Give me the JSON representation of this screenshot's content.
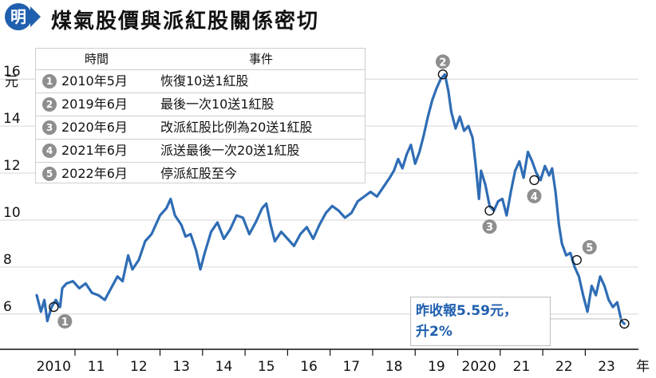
{
  "header": {
    "badge": "明",
    "title": "煤氣股價與派紅股關係密切"
  },
  "legend": {
    "col_time": "時間",
    "col_event": "事件",
    "rows": [
      {
        "num": "1",
        "time": "2010年5月",
        "event": "恢復10送1紅股"
      },
      {
        "num": "2",
        "time": "2019年6月",
        "event": "最後一次10送1紅股"
      },
      {
        "num": "3",
        "time": "2020年6月",
        "event": "改派紅股比例為20送1紅股"
      },
      {
        "num": "4",
        "time": "2021年6月",
        "event": "派送最後一次20送1紅股"
      },
      {
        "num": "5",
        "time": "2022年6月",
        "event": "停派紅股至今"
      }
    ]
  },
  "callout": {
    "line1": "昨收報5.59元，",
    "line2": "升2%"
  },
  "colors": {
    "line": "#2f6db5",
    "accent": "#1f5fae",
    "marker_badge": "#8e8e8e",
    "axis": "#111111"
  },
  "chart_data": {
    "type": "line",
    "title": "煤氣股價與派紅股關係密切",
    "ylabel": "元",
    "xlabel": "年",
    "ylim": [
      4.5,
      17.5
    ],
    "xlim": [
      2009.45,
      2023.75
    ],
    "y_ticks": [
      6,
      8,
      10,
      12,
      14,
      16
    ],
    "x_ticks": [
      {
        "value": 2010,
        "label": "2010"
      },
      {
        "value": 2011,
        "label": "11"
      },
      {
        "value": 2012,
        "label": "12"
      },
      {
        "value": 2013,
        "label": "13"
      },
      {
        "value": 2014,
        "label": "14"
      },
      {
        "value": 2015,
        "label": "15"
      },
      {
        "value": 2016,
        "label": "16"
      },
      {
        "value": 2017,
        "label": "17"
      },
      {
        "value": 2018,
        "label": "18"
      },
      {
        "value": 2019,
        "label": "19"
      },
      {
        "value": 2020,
        "label": "2020"
      },
      {
        "value": 2021,
        "label": "21"
      },
      {
        "value": 2022,
        "label": "22"
      },
      {
        "value": 2023,
        "label": "23"
      }
    ],
    "series": [
      {
        "name": "煤氣股價",
        "points": [
          [
            2009.6,
            6.8
          ],
          [
            2009.7,
            6.1
          ],
          [
            2009.78,
            6.6
          ],
          [
            2009.85,
            5.7
          ],
          [
            2009.95,
            6.3
          ],
          [
            2010.05,
            6.6
          ],
          [
            2010.15,
            6.3
          ],
          [
            2010.2,
            7.1
          ],
          [
            2010.3,
            7.3
          ],
          [
            2010.45,
            7.4
          ],
          [
            2010.6,
            7.1
          ],
          [
            2010.75,
            7.3
          ],
          [
            2010.9,
            6.9
          ],
          [
            2011.05,
            6.8
          ],
          [
            2011.2,
            6.6
          ],
          [
            2011.35,
            7.1
          ],
          [
            2011.5,
            7.6
          ],
          [
            2011.62,
            7.4
          ],
          [
            2011.75,
            8.5
          ],
          [
            2011.85,
            7.9
          ],
          [
            2012.0,
            8.3
          ],
          [
            2012.15,
            9.1
          ],
          [
            2012.3,
            9.4
          ],
          [
            2012.5,
            10.2
          ],
          [
            2012.65,
            10.5
          ],
          [
            2012.75,
            10.9
          ],
          [
            2012.85,
            10.2
          ],
          [
            2013.0,
            9.8
          ],
          [
            2013.1,
            9.3
          ],
          [
            2013.22,
            9.4
          ],
          [
            2013.35,
            8.7
          ],
          [
            2013.45,
            7.9
          ],
          [
            2013.55,
            8.6
          ],
          [
            2013.7,
            9.5
          ],
          [
            2013.85,
            9.9
          ],
          [
            2014.0,
            9.2
          ],
          [
            2014.15,
            9.6
          ],
          [
            2014.3,
            10.2
          ],
          [
            2014.45,
            10.1
          ],
          [
            2014.6,
            9.4
          ],
          [
            2014.75,
            9.9
          ],
          [
            2014.9,
            10.5
          ],
          [
            2015.0,
            10.7
          ],
          [
            2015.1,
            9.8
          ],
          [
            2015.2,
            9.1
          ],
          [
            2015.35,
            9.5
          ],
          [
            2015.5,
            9.2
          ],
          [
            2015.65,
            8.9
          ],
          [
            2015.8,
            9.4
          ],
          [
            2015.95,
            9.7
          ],
          [
            2016.1,
            9.2
          ],
          [
            2016.25,
            9.8
          ],
          [
            2016.4,
            10.3
          ],
          [
            2016.55,
            10.6
          ],
          [
            2016.7,
            10.4
          ],
          [
            2016.85,
            10.1
          ],
          [
            2017.0,
            10.3
          ],
          [
            2017.15,
            10.8
          ],
          [
            2017.3,
            11.0
          ],
          [
            2017.45,
            11.2
          ],
          [
            2017.6,
            11.0
          ],
          [
            2017.75,
            11.4
          ],
          [
            2017.9,
            11.8
          ],
          [
            2018.0,
            12.1
          ],
          [
            2018.1,
            12.6
          ],
          [
            2018.2,
            12.2
          ],
          [
            2018.3,
            12.8
          ],
          [
            2018.4,
            13.2
          ],
          [
            2018.5,
            12.4
          ],
          [
            2018.6,
            12.9
          ],
          [
            2018.7,
            13.6
          ],
          [
            2018.8,
            14.4
          ],
          [
            2018.9,
            15.1
          ],
          [
            2019.0,
            15.6
          ],
          [
            2019.1,
            16.0
          ],
          [
            2019.2,
            16.2
          ],
          [
            2019.28,
            15.5
          ],
          [
            2019.35,
            14.6
          ],
          [
            2019.45,
            13.9
          ],
          [
            2019.55,
            14.4
          ],
          [
            2019.65,
            13.8
          ],
          [
            2019.75,
            14.0
          ],
          [
            2019.85,
            13.5
          ],
          [
            2019.92,
            12.4
          ],
          [
            2020.0,
            10.9
          ],
          [
            2020.05,
            12.1
          ],
          [
            2020.15,
            11.5
          ],
          [
            2020.25,
            10.6
          ],
          [
            2020.35,
            10.4
          ],
          [
            2020.45,
            10.8
          ],
          [
            2020.55,
            10.9
          ],
          [
            2020.65,
            10.2
          ],
          [
            2020.75,
            11.2
          ],
          [
            2020.85,
            12.1
          ],
          [
            2020.95,
            12.5
          ],
          [
            2021.05,
            11.8
          ],
          [
            2021.15,
            12.9
          ],
          [
            2021.25,
            12.5
          ],
          [
            2021.35,
            12.0
          ],
          [
            2021.45,
            11.7
          ],
          [
            2021.55,
            12.3
          ],
          [
            2021.65,
            11.9
          ],
          [
            2021.72,
            12.2
          ],
          [
            2021.8,
            11.2
          ],
          [
            2021.88,
            9.8
          ],
          [
            2021.95,
            9.0
          ],
          [
            2022.05,
            8.5
          ],
          [
            2022.15,
            8.6
          ],
          [
            2022.25,
            8.0
          ],
          [
            2022.35,
            7.6
          ],
          [
            2022.45,
            6.8
          ],
          [
            2022.55,
            6.1
          ],
          [
            2022.65,
            7.2
          ],
          [
            2022.75,
            6.8
          ],
          [
            2022.85,
            7.6
          ],
          [
            2022.95,
            7.2
          ],
          [
            2023.05,
            6.6
          ],
          [
            2023.15,
            6.3
          ],
          [
            2023.25,
            6.5
          ],
          [
            2023.35,
            5.7
          ],
          [
            2023.42,
            5.59
          ]
        ]
      }
    ],
    "markers": [
      {
        "num": "1",
        "x": 2010.0,
        "y": 6.3,
        "label_pos": "below-right"
      },
      {
        "num": "2",
        "x": 2019.15,
        "y": 16.2,
        "label_pos": "above"
      },
      {
        "num": "3",
        "x": 2020.25,
        "y": 10.4,
        "label_pos": "below"
      },
      {
        "num": "4",
        "x": 2021.3,
        "y": 11.7,
        "label_pos": "below"
      },
      {
        "num": "5",
        "x": 2022.3,
        "y": 8.3,
        "label_pos": "above-right"
      }
    ],
    "end_point": {
      "x": 2023.42,
      "y": 5.59
    }
  }
}
